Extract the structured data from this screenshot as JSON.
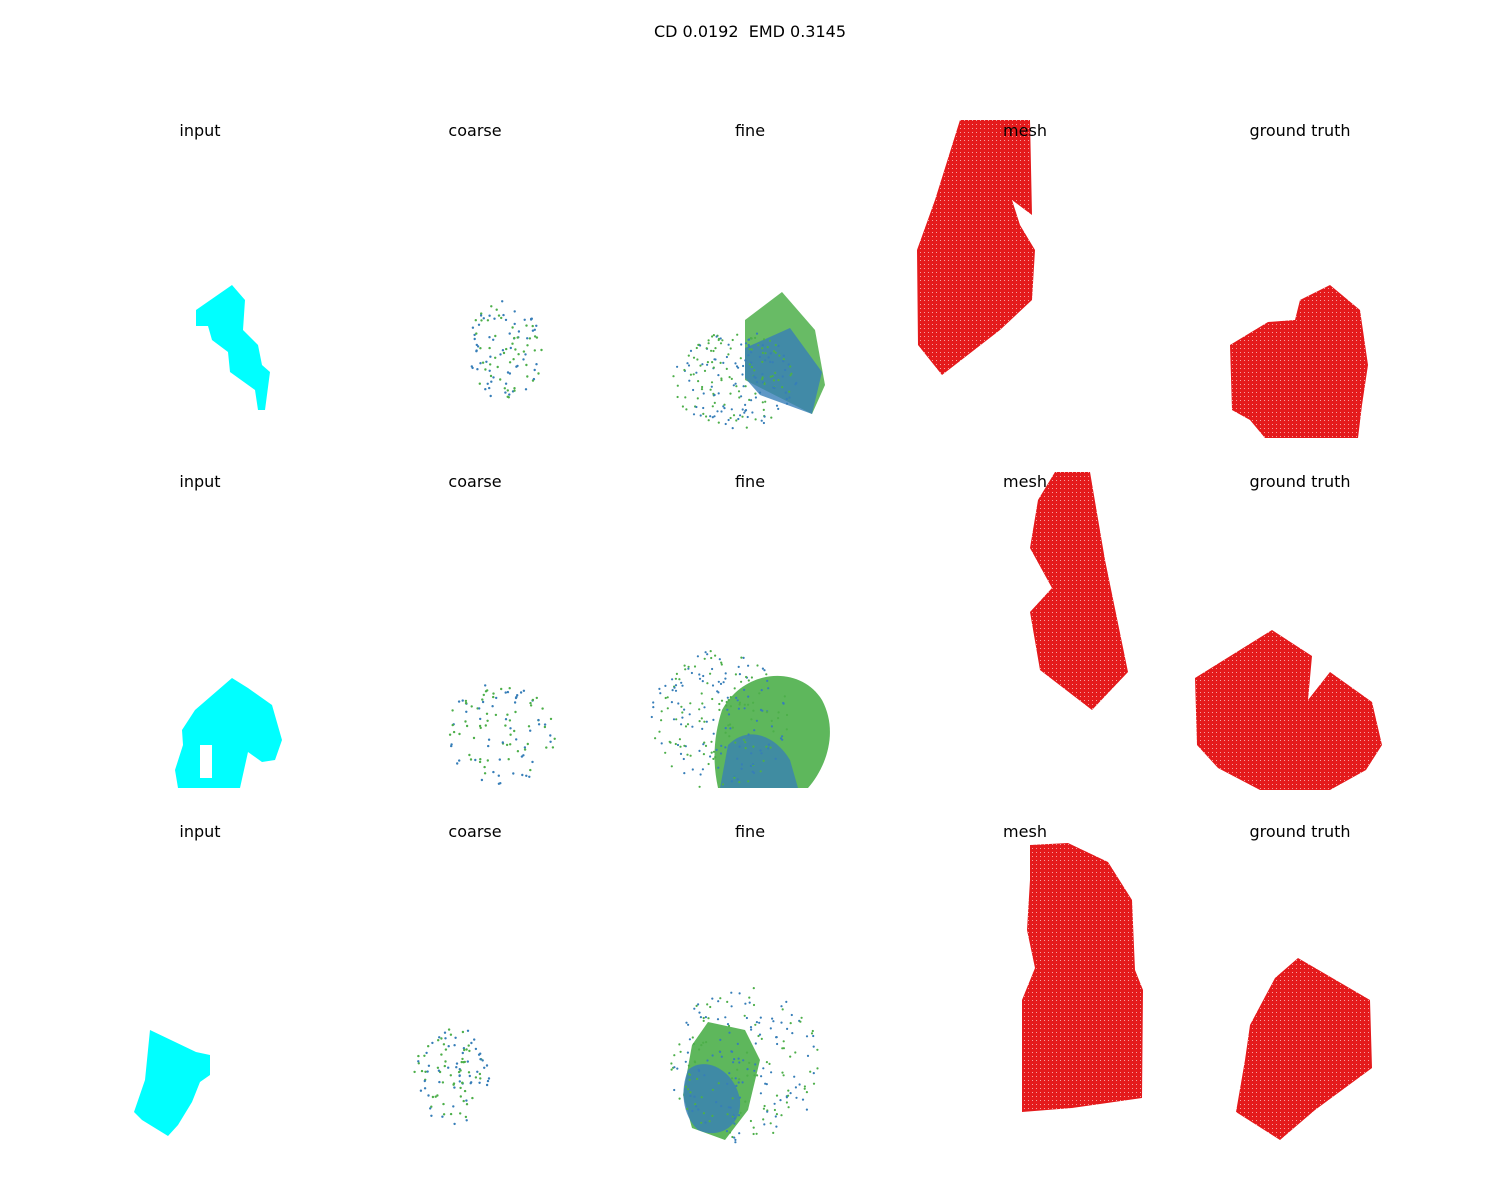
{
  "figure": {
    "title": "CD 0.0192  EMD 0.3145",
    "panel_labels": [
      "input",
      "coarse",
      "fine",
      "mesh",
      "ground truth"
    ],
    "rows": 3
  },
  "colors": {
    "input": "#00ffff",
    "coarse_green": "#4daf4a",
    "coarse_blue": "#377eb8",
    "mesh": "#e41a1c",
    "ground_truth": "#e41a1c"
  }
}
